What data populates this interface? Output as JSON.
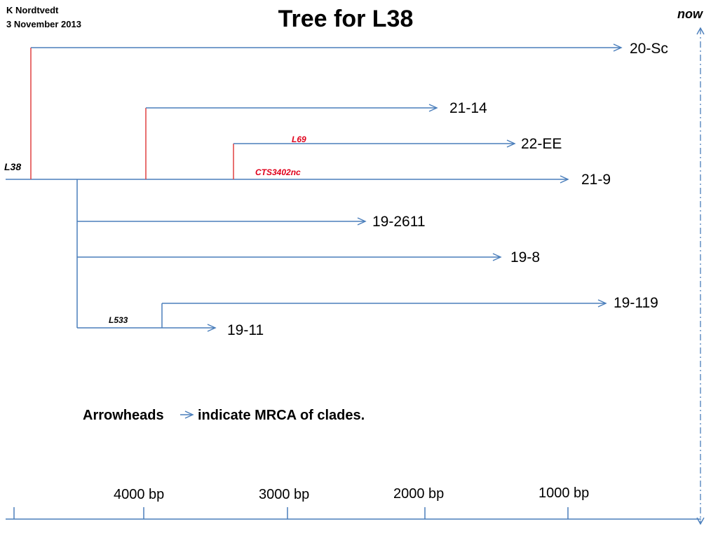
{
  "header": {
    "author": "K  Nordtvedt",
    "date": "3 November 2013",
    "title": "Tree for L38",
    "now_label": "now"
  },
  "tree": {
    "root_label": "L38",
    "snp_labels": {
      "l69": "L69",
      "cts3402nc": "CTS3402nc",
      "l533": "L533"
    },
    "leaves": {
      "sc20": "20-Sc",
      "n21_14": "21-14",
      "ee22": "22-EE",
      "n21_9": "21-9",
      "n19_2611": "19-2611",
      "n19_8": "19-8",
      "n19_119": "19-119",
      "n19_11": "19-11"
    }
  },
  "legend": {
    "prefix": "Arrowheads",
    "suffix": "indicate MRCA of clades."
  },
  "timeline": {
    "ticks": [
      "4000 bp",
      "3000 bp",
      "2000 bp",
      "1000 bp"
    ]
  },
  "colors": {
    "branch_blue": "#4a7ebb",
    "mutation_red": "#e04040",
    "label_red": "#e0001b"
  }
}
